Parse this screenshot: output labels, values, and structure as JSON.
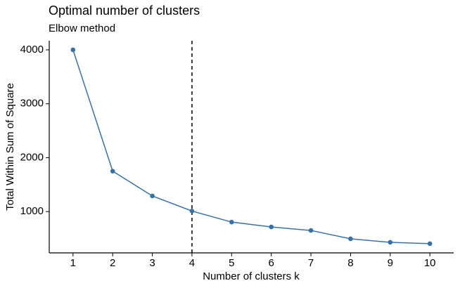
{
  "chart_data": {
    "type": "line",
    "title": "Optimal number of clusters",
    "subtitle": "Elbow method",
    "x_label": "Number of clusters k",
    "y_label": "Total Within Sum of Square",
    "x": [
      1,
      2,
      3,
      4,
      5,
      6,
      7,
      8,
      9,
      10
    ],
    "values": [
      4000,
      1750,
      1290,
      1010,
      805,
      715,
      650,
      495,
      430,
      405
    ],
    "color": "#3671a8",
    "vline": 4,
    "xlim": [
      0.4,
      10.6
    ],
    "xticks": [
      1,
      2,
      3,
      4,
      5,
      6,
      7,
      8,
      9,
      10
    ],
    "ylim": [
      234,
      4169
    ],
    "yticks": [
      1000,
      2000,
      3000,
      4000
    ],
    "grid": false
  }
}
